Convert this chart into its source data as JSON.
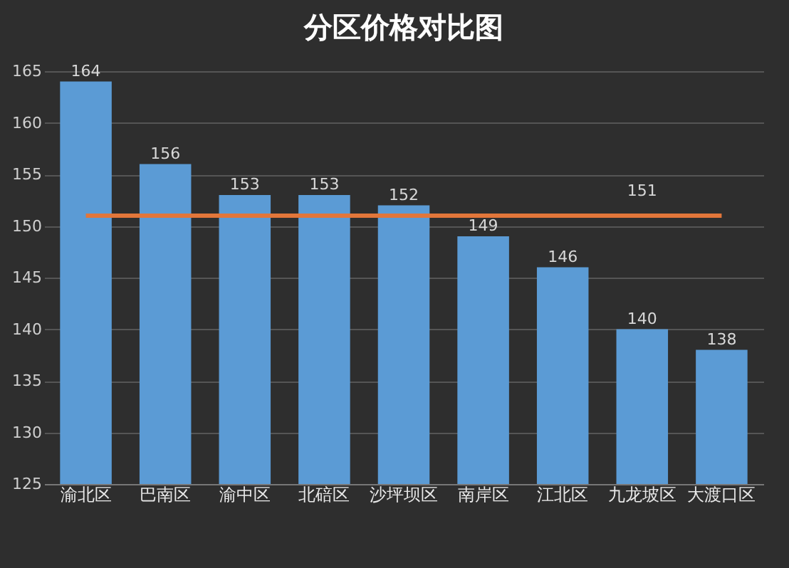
{
  "chart_data": {
    "type": "bar",
    "title": "分区价格对比图",
    "categories": [
      "渝北区",
      "巴南区",
      "渝中区",
      "北碚区",
      "沙坪坝区",
      "南岸区",
      "江北区",
      "九龙坡区",
      "大渡口区"
    ],
    "series": [
      {
        "color": "#5b9bd5",
        "values": [
          164,
          156,
          153,
          153,
          152,
          149,
          146,
          140,
          138
        ],
        "value_labels": [
          "164",
          "156",
          "153",
          "153",
          "152",
          "149",
          "146",
          "140",
          "138"
        ]
      },
      {
        "type": "line",
        "color": "#e2763a",
        "values": [
          151,
          151,
          151,
          151,
          151,
          151,
          151,
          151,
          151
        ],
        "value_labels": [
          null,
          null,
          null,
          null,
          null,
          null,
          null,
          "151",
          null
        ]
      }
    ],
    "ylim": [
      125,
      165
    ],
    "yticks": [
      125,
      130,
      135,
      140,
      145,
      150,
      155,
      160,
      165
    ],
    "grid": "y"
  }
}
